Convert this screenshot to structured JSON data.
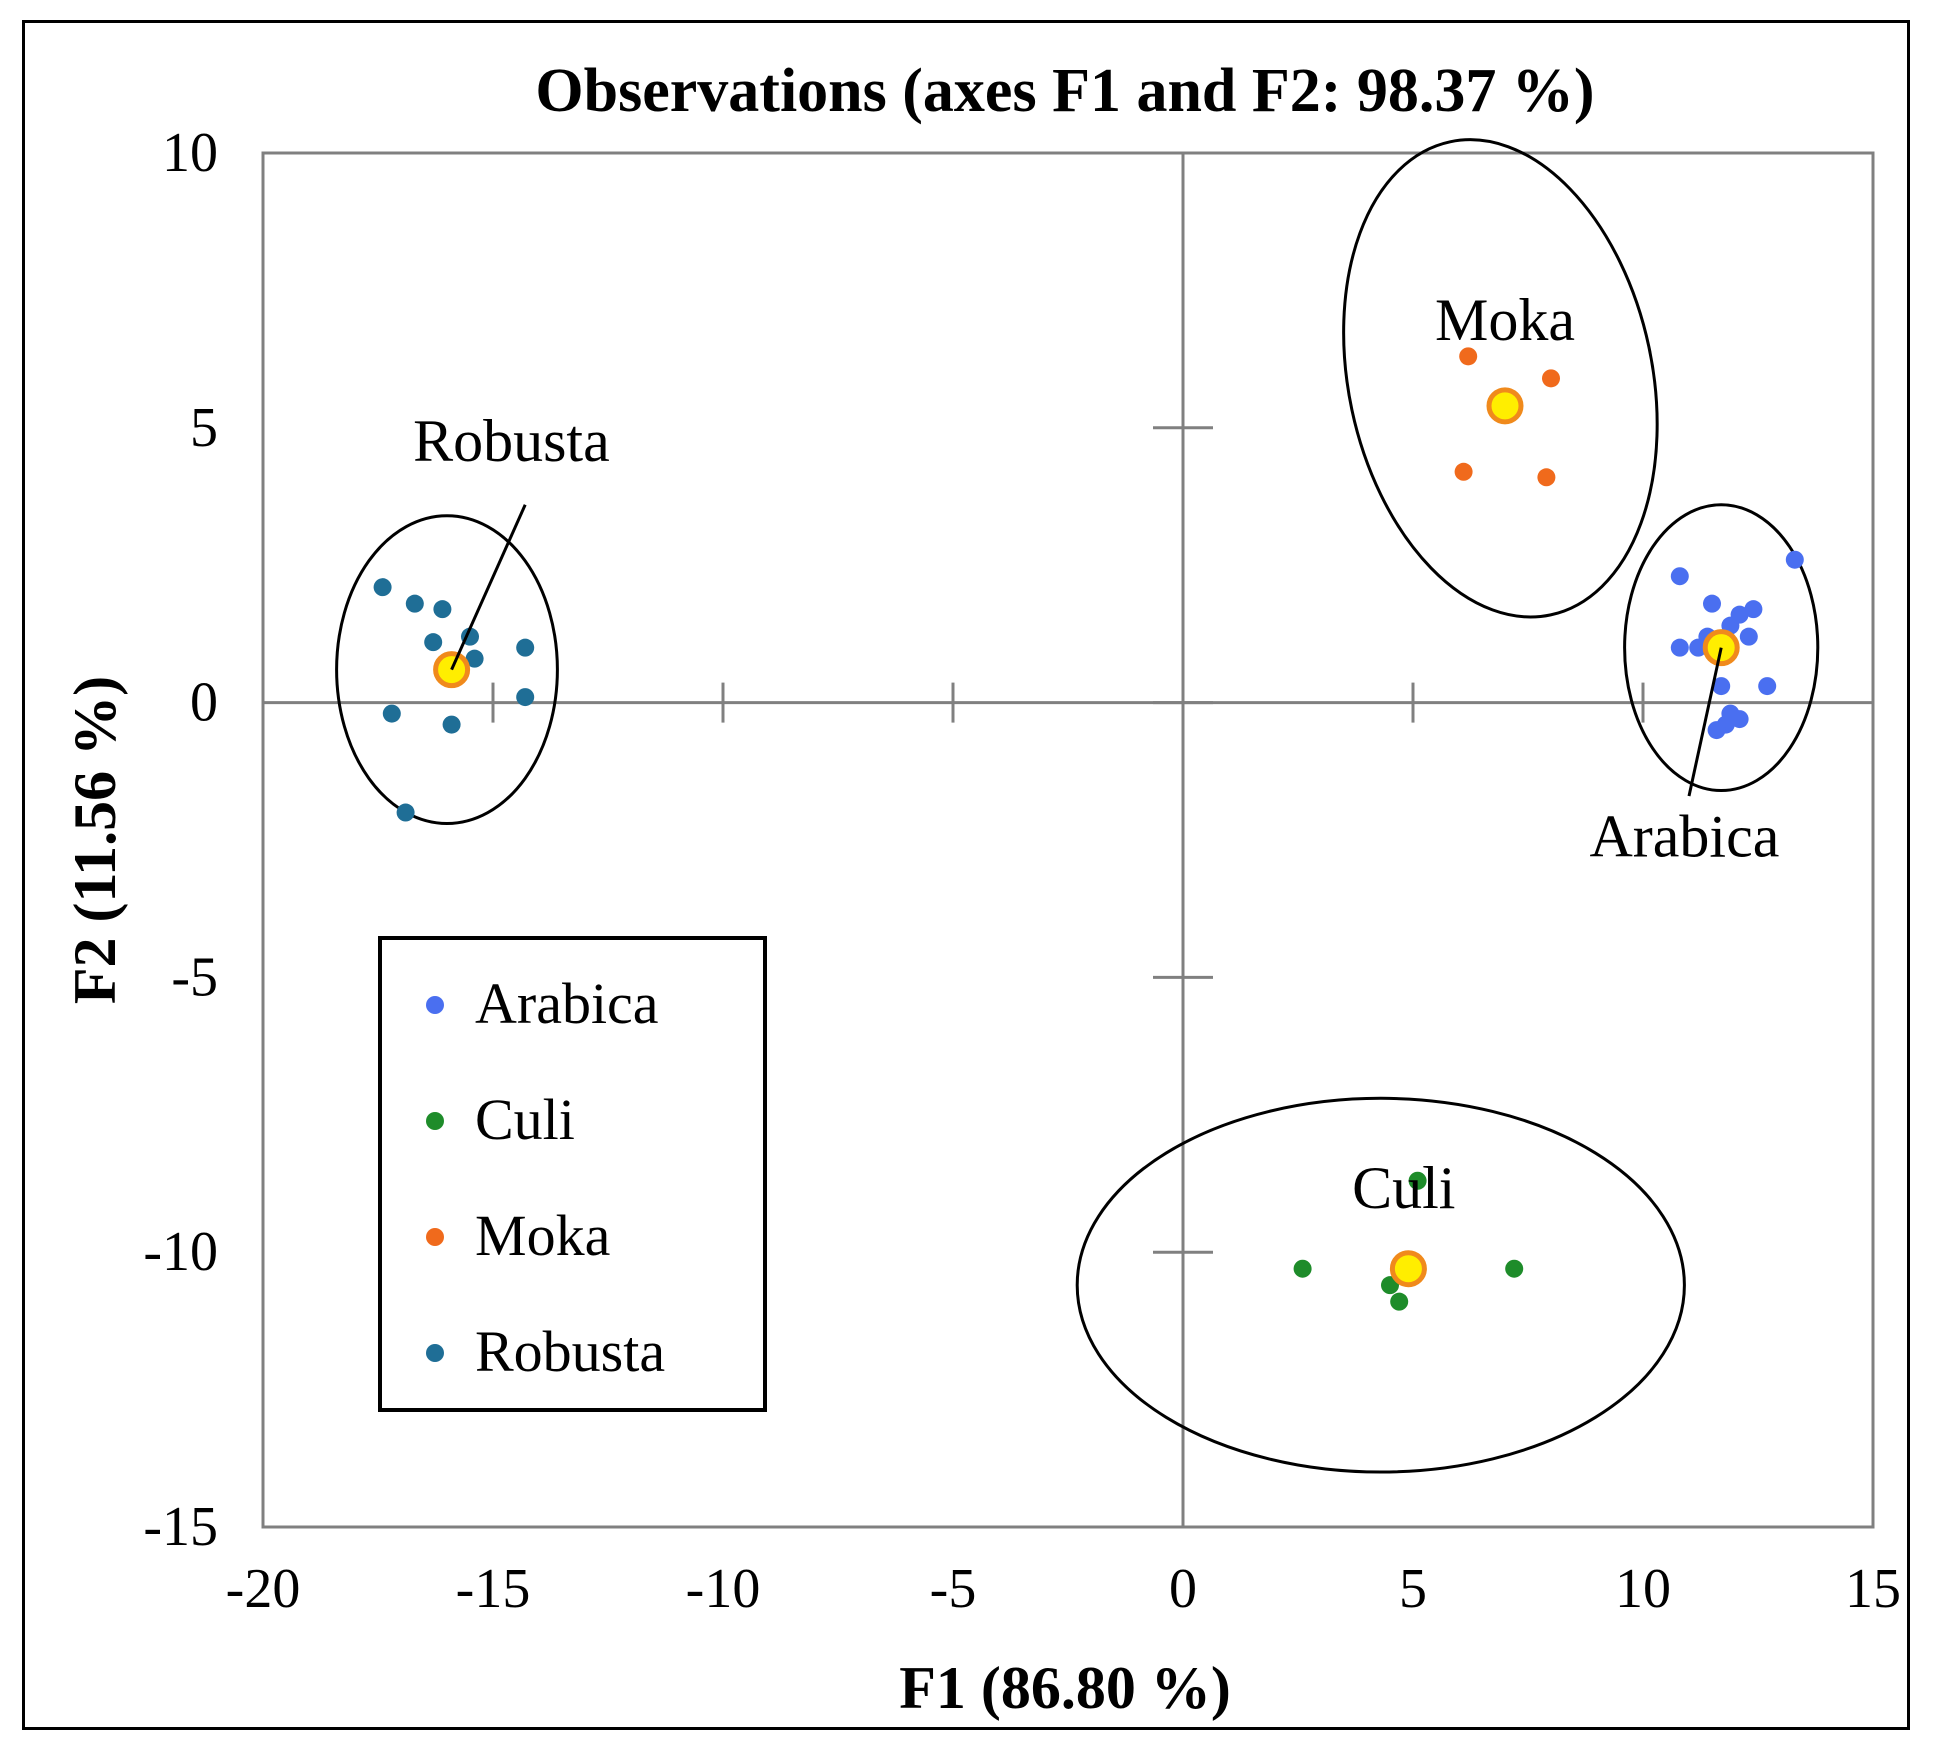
{
  "chart_data": {
    "type": "scatter",
    "title": "Observations  (axes F1 and F2: 98.37 %)",
    "xlabel": "F1 (86.80 %)",
    "ylabel": "F2 (11.56 %)",
    "xlim": [
      -20,
      15
    ],
    "ylim": [
      -15,
      10
    ],
    "xticks": [
      "-20",
      "-15",
      "-10",
      "-5",
      "0",
      "5",
      "10",
      "15"
    ],
    "yticks": [
      "10",
      "5",
      "0",
      "-5",
      "-10",
      "-15"
    ],
    "legend_position": "lower-left",
    "series": [
      {
        "name": "Arabica",
        "color": "#4a6ff0",
        "points": [
          [
            10.8,
            2.3
          ],
          [
            13.3,
            2.6
          ],
          [
            11.5,
            1.8
          ],
          [
            11.9,
            1.4
          ],
          [
            12.1,
            1.6
          ],
          [
            12.4,
            1.7
          ],
          [
            11.4,
            1.2
          ],
          [
            12.3,
            1.2
          ],
          [
            10.8,
            1.0
          ],
          [
            11.2,
            1.0
          ],
          [
            11.7,
            0.3
          ],
          [
            12.7,
            0.3
          ],
          [
            11.9,
            -0.2
          ],
          [
            11.8,
            -0.4
          ],
          [
            12.1,
            -0.3
          ],
          [
            11.6,
            -0.5
          ]
        ],
        "centroid": [
          11.7,
          1.0
        ],
        "label": "Arabica"
      },
      {
        "name": "Culi",
        "color": "#1e8c2a",
        "points": [
          [
            5.1,
            -8.7
          ],
          [
            2.6,
            -10.3
          ],
          [
            7.2,
            -10.3
          ],
          [
            4.5,
            -10.6
          ],
          [
            4.7,
            -10.9
          ]
        ],
        "centroid": [
          4.9,
          -10.3
        ],
        "label": "Culi"
      },
      {
        "name": "Moka",
        "color": "#f06a1c",
        "points": [
          [
            6.2,
            6.3
          ],
          [
            8.0,
            5.9
          ],
          [
            6.1,
            4.2
          ],
          [
            7.9,
            4.1
          ]
        ],
        "centroid": [
          7.0,
          5.4
        ],
        "label": "Moka"
      },
      {
        "name": "Robusta",
        "color": "#1f6e96",
        "points": [
          [
            -17.4,
            2.1
          ],
          [
            -16.7,
            1.8
          ],
          [
            -16.1,
            1.7
          ],
          [
            -16.3,
            1.1
          ],
          [
            -15.5,
            1.2
          ],
          [
            -14.3,
            1.0
          ],
          [
            -15.4,
            0.8
          ],
          [
            -14.3,
            0.1
          ],
          [
            -17.2,
            -0.2
          ],
          [
            -15.9,
            -0.4
          ],
          [
            -16.9,
            -2.0
          ]
        ],
        "centroid": [
          -15.9,
          0.6
        ],
        "label": "Robusta"
      }
    ],
    "centroid_color": "#ffee00",
    "centroid_edge": "#f08a1c"
  }
}
